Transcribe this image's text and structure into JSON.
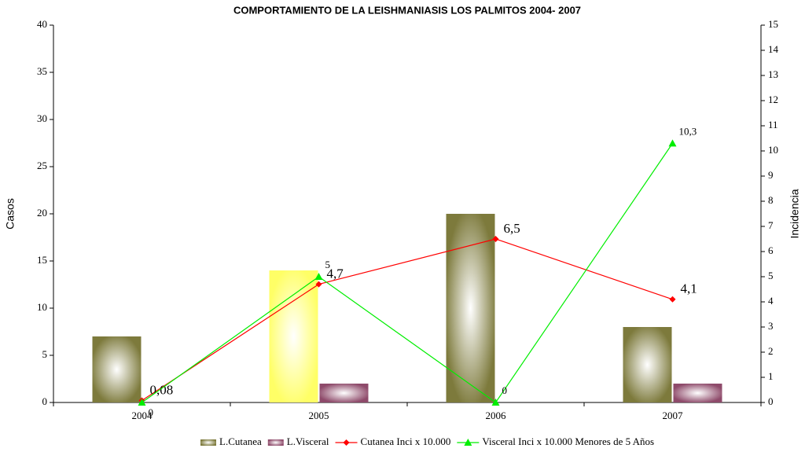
{
  "chart_data": {
    "type": "bar_line",
    "title": "COMPORTAMIENTO DE LA LEISHMANIASIS LOS PALMITOS 2004- 2007",
    "y_label": "Casos",
    "y2_label": "Incidencia",
    "categories": [
      "2004",
      "2005",
      "2006",
      "2007"
    ],
    "ylim": [
      0,
      40
    ],
    "yticks": [
      0,
      5,
      10,
      15,
      20,
      25,
      30,
      35,
      40
    ],
    "y2lim": [
      0,
      15
    ],
    "y2ticks": [
      0,
      1,
      2,
      3,
      4,
      5,
      6,
      7,
      8,
      9,
      10,
      11,
      12,
      13,
      14,
      15
    ],
    "series": [
      {
        "name": "L.Cutanea",
        "kind": "bar",
        "color": "#7d7a3c",
        "colors": [
          "#7d7a3c",
          "#ffff66",
          "#7d7a3c",
          "#7d7a3c"
        ],
        "values": [
          7,
          14,
          20,
          8
        ]
      },
      {
        "name": "L.Visceral",
        "kind": "bar",
        "color": "#8e4a6a",
        "values": [
          0,
          2,
          0,
          2
        ]
      },
      {
        "name": "Cutanea Inci x 10.000",
        "kind": "line",
        "axis": "y2",
        "color": "#ff0000",
        "marker": "diamond",
        "values": [
          0.08,
          4.7,
          6.5,
          4.1
        ],
        "value_labels": [
          "0,08",
          "4,7",
          "6,5",
          "4,1"
        ]
      },
      {
        "name": "Visceral Inci x 10.000 Menores de 5 Años",
        "kind": "line",
        "axis": "y2",
        "color": "#00ee00",
        "marker": "triangle",
        "values": [
          0,
          5,
          0,
          10.3
        ],
        "value_labels": [
          "0",
          "5",
          "0",
          "10,3"
        ]
      }
    ],
    "legend": "bottom"
  }
}
